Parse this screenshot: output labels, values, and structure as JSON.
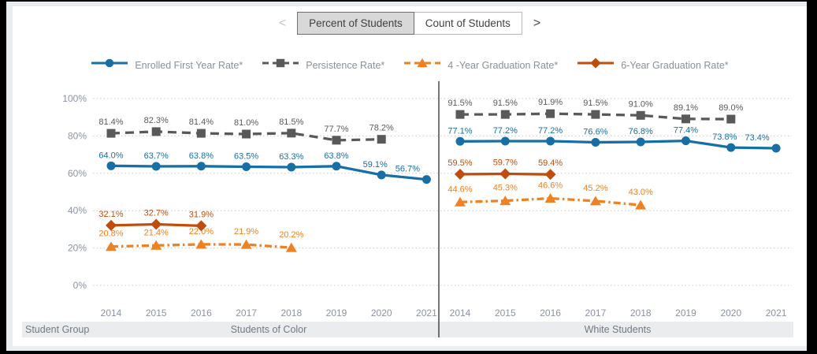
{
  "toolbar": {
    "prev_label": "<",
    "next_label": ">",
    "tabs": [
      {
        "label": "Percent of Students",
        "selected": true
      },
      {
        "label": "Count of Students",
        "selected": false
      }
    ]
  },
  "footer": {
    "row_label": "Student Group"
  },
  "chart_data": {
    "type": "line",
    "x": [
      2014,
      2015,
      2016,
      2017,
      2018,
      2019,
      2020,
      2021
    ],
    "y_axis": {
      "min": 0,
      "max": 100,
      "step": 20,
      "tick_labels": [
        "0%",
        "20%",
        "40%",
        "60%",
        "80%",
        "100%"
      ],
      "grid": "dotted"
    },
    "legend_position": "top",
    "value_label_format": "0.0%",
    "series": [
      {
        "name": "Enrolled First Year Rate*",
        "color": "#176fa5",
        "marker": "circle",
        "line_style": "solid"
      },
      {
        "name": "Persistence Rate*",
        "color": "#595959",
        "marker": "square",
        "line_style": "dashed"
      },
      {
        "name": "4 -Year Graduation Rate*",
        "color": "#f08122",
        "marker": "triangle",
        "line_style": "dash-dot"
      },
      {
        "name": "6-Year Graduation Rate*",
        "color": "#bf4e0e",
        "marker": "diamond",
        "line_style": "solid"
      }
    ],
    "panels": [
      {
        "label": "Students of Color",
        "values": {
          "Enrolled First Year Rate*": [
            64.0,
            63.7,
            63.8,
            63.5,
            63.3,
            63.8,
            59.1,
            56.7
          ],
          "Persistence Rate*": [
            81.4,
            82.3,
            81.4,
            81.0,
            81.5,
            77.7,
            78.2,
            null
          ],
          "4 -Year Graduation Rate*": [
            20.8,
            21.4,
            22.0,
            21.9,
            20.2,
            null,
            null,
            null
          ],
          "6-Year Graduation Rate*": [
            32.1,
            32.7,
            31.9,
            null,
            null,
            null,
            null,
            null
          ]
        }
      },
      {
        "label": "White Students",
        "values": {
          "Enrolled First Year Rate*": [
            77.1,
            77.2,
            77.2,
            76.6,
            76.8,
            77.4,
            73.8,
            73.4
          ],
          "Persistence Rate*": [
            91.5,
            91.5,
            91.9,
            91.5,
            91.0,
            89.1,
            89.0,
            null
          ],
          "4 -Year Graduation Rate*": [
            44.6,
            45.3,
            46.6,
            45.2,
            43.0,
            null,
            null,
            null
          ],
          "6-Year Graduation Rate*": [
            59.5,
            59.7,
            59.4,
            null,
            null,
            null,
            null,
            null
          ]
        }
      }
    ]
  }
}
